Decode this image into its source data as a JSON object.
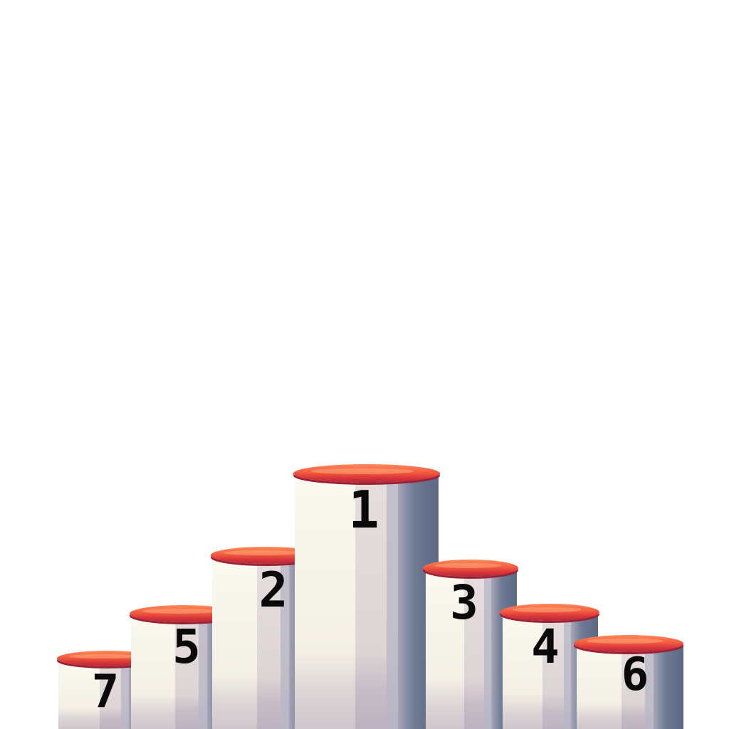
{
  "podiums": {
    "p1": {
      "label": "1",
      "rank": 1
    },
    "p2": {
      "label": "2",
      "rank": 2
    },
    "p3": {
      "label": "3",
      "rank": 3
    },
    "p4": {
      "label": "4",
      "rank": 4
    },
    "p5": {
      "label": "5",
      "rank": 5
    },
    "p6": {
      "label": "6",
      "rank": 6
    },
    "p7": {
      "label": "7",
      "rank": 7
    }
  },
  "colors": {
    "background": "#ffffff",
    "rim": "#e8423a",
    "column_light": "#f6f2e6",
    "column_shadow": "#5c6a86",
    "number": "#0a0a0a"
  }
}
